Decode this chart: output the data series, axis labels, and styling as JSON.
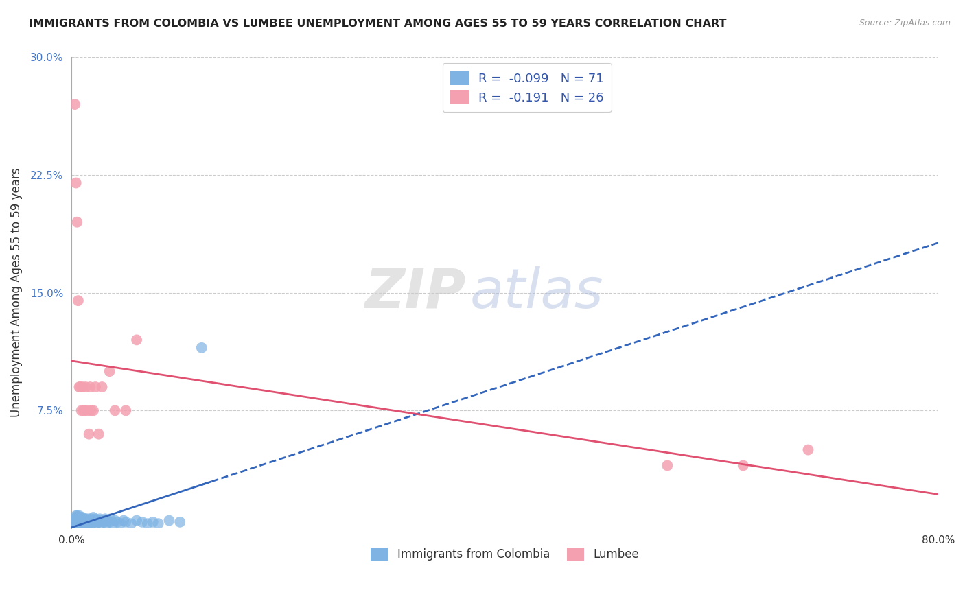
{
  "title": "IMMIGRANTS FROM COLOMBIA VS LUMBEE UNEMPLOYMENT AMONG AGES 55 TO 59 YEARS CORRELATION CHART",
  "source_text": "Source: ZipAtlas.com",
  "ylabel": "Unemployment Among Ages 55 to 59 years",
  "xlim": [
    0.0,
    0.8
  ],
  "ylim": [
    0.0,
    0.3
  ],
  "yticks": [
    0.0,
    0.075,
    0.15,
    0.225,
    0.3
  ],
  "ytick_labels": [
    "",
    "7.5%",
    "15.0%",
    "22.5%",
    "30.0%"
  ],
  "grid_color": "#cccccc",
  "background_color": "#ffffff",
  "colombia_color": "#7EB3E3",
  "lumbee_color": "#F4A0B0",
  "colombia_R": -0.099,
  "colombia_N": 71,
  "lumbee_R": -0.191,
  "lumbee_N": 26,
  "legend_label_colombia": "Immigrants from Colombia",
  "legend_label_lumbee": "Lumbee",
  "watermark_zip": "ZIP",
  "watermark_atlas": "atlas",
  "colombia_x": [
    0.002,
    0.003,
    0.003,
    0.004,
    0.004,
    0.004,
    0.005,
    0.005,
    0.005,
    0.005,
    0.005,
    0.006,
    0.006,
    0.006,
    0.007,
    0.007,
    0.007,
    0.008,
    0.008,
    0.008,
    0.009,
    0.009,
    0.01,
    0.01,
    0.01,
    0.011,
    0.011,
    0.012,
    0.012,
    0.013,
    0.013,
    0.014,
    0.014,
    0.015,
    0.015,
    0.016,
    0.017,
    0.018,
    0.018,
    0.019,
    0.02,
    0.02,
    0.021,
    0.022,
    0.023,
    0.024,
    0.025,
    0.026,
    0.027,
    0.028,
    0.03,
    0.031,
    0.032,
    0.033,
    0.035,
    0.036,
    0.038,
    0.04,
    0.042,
    0.045,
    0.048,
    0.05,
    0.055,
    0.06,
    0.065,
    0.07,
    0.075,
    0.08,
    0.09,
    0.1,
    0.12
  ],
  "colombia_y": [
    0.005,
    0.003,
    0.006,
    0.004,
    0.006,
    0.008,
    0.002,
    0.004,
    0.005,
    0.006,
    0.008,
    0.003,
    0.005,
    0.007,
    0.004,
    0.006,
    0.008,
    0.003,
    0.005,
    0.007,
    0.004,
    0.006,
    0.003,
    0.005,
    0.007,
    0.004,
    0.006,
    0.003,
    0.005,
    0.004,
    0.006,
    0.003,
    0.005,
    0.004,
    0.006,
    0.003,
    0.005,
    0.004,
    0.006,
    0.003,
    0.005,
    0.007,
    0.004,
    0.006,
    0.003,
    0.005,
    0.004,
    0.006,
    0.003,
    0.005,
    0.004,
    0.006,
    0.003,
    0.005,
    0.004,
    0.006,
    0.003,
    0.005,
    0.004,
    0.003,
    0.005,
    0.004,
    0.003,
    0.005,
    0.004,
    0.003,
    0.004,
    0.003,
    0.005,
    0.004,
    0.115
  ],
  "lumbee_x": [
    0.003,
    0.004,
    0.005,
    0.006,
    0.007,
    0.008,
    0.009,
    0.01,
    0.011,
    0.012,
    0.013,
    0.015,
    0.016,
    0.017,
    0.018,
    0.02,
    0.022,
    0.025,
    0.028,
    0.035,
    0.04,
    0.05,
    0.06,
    0.55,
    0.62,
    0.68
  ],
  "lumbee_y": [
    0.27,
    0.22,
    0.195,
    0.145,
    0.09,
    0.09,
    0.075,
    0.09,
    0.075,
    0.075,
    0.09,
    0.075,
    0.06,
    0.09,
    0.075,
    0.075,
    0.09,
    0.06,
    0.09,
    0.1,
    0.075,
    0.075,
    0.12,
    0.04,
    0.04,
    0.05
  ]
}
